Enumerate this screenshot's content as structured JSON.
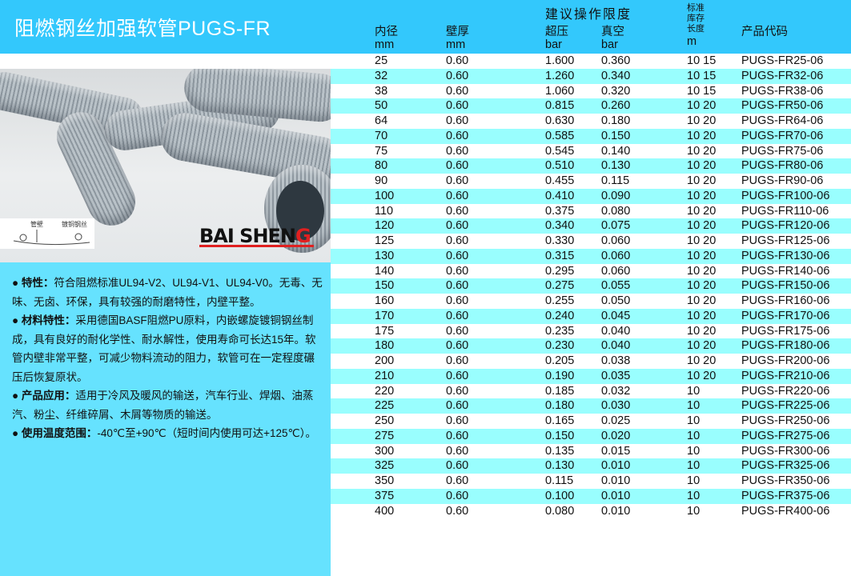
{
  "title": "阻燃钢丝加强软管PUGS-FR",
  "photo": {
    "diagram_labels": [
      "管壁",
      "镀铜钢丝"
    ],
    "logo_text": "BAI SHENG"
  },
  "colors": {
    "header": "#33c8fc",
    "panel": "#66e2fe",
    "row_alt": "#99fefe"
  },
  "description": [
    {
      "label": "特性：",
      "text": "符合阻燃标准UL94-V2、UL94-V1、UL94-V0。无毒、无味、无卤、环保，具有较强的耐磨特性，内壁平整。"
    },
    {
      "label": "材料特性：",
      "text": "采用德国BASF阻燃PU原料，内嵌螺旋镀铜钢丝制成，具有良好的耐化学性、耐水解性，使用寿命可长达15年。软管内壁非常平整，可减少物料流动的阻力，软管可在一定程度碾压后恢复原状。"
    },
    {
      "label": "产品应用：",
      "text": "适用于冷风及暖风的输送，汽车行业、焊烟、油蒸汽、粉尘、纤维碎屑、木屑等物质的输送。"
    },
    {
      "label": "使用温度范围：",
      "text": "-40℃至+90℃（短时间内使用可达+125℃）。"
    }
  ],
  "table": {
    "group_header": "建议操作限度",
    "headers": [
      {
        "name": "内径",
        "unit": "mm"
      },
      {
        "name": "壁厚",
        "unit": "mm"
      },
      {
        "name": "超压",
        "unit": "bar"
      },
      {
        "name": "真空",
        "unit": "bar"
      },
      {
        "name": "标准库存长度",
        "lines": [
          "标准",
          "库存",
          "长度"
        ],
        "unit": "m"
      },
      {
        "name": "产品代码",
        "unit": ""
      }
    ],
    "rows": [
      [
        "25",
        "0.60",
        "1.600",
        "0.360",
        "10 15",
        "PUGS-FR25-06"
      ],
      [
        "32",
        "0.60",
        "1.260",
        "0.340",
        "10 15",
        "PUGS-FR32-06"
      ],
      [
        "38",
        "0.60",
        "1.060",
        "0.320",
        "10 15",
        "PUGS-FR38-06"
      ],
      [
        "50",
        "0.60",
        "0.815",
        "0.260",
        "10 20",
        "PUGS-FR50-06"
      ],
      [
        "64",
        "0.60",
        "0.630",
        "0.180",
        "10 20",
        "PUGS-FR64-06"
      ],
      [
        "70",
        "0.60",
        "0.585",
        "0.150",
        "10 20",
        "PUGS-FR70-06"
      ],
      [
        "75",
        "0.60",
        "0.545",
        "0.140",
        "10 20",
        "PUGS-FR75-06"
      ],
      [
        "80",
        "0.60",
        "0.510",
        "0.130",
        "10 20",
        "PUGS-FR80-06"
      ],
      [
        "90",
        "0.60",
        "0.455",
        "0.115",
        "10 20",
        "PUGS-FR90-06"
      ],
      [
        "100",
        "0.60",
        "0.410",
        "0.090",
        "10 20",
        "PUGS-FR100-06"
      ],
      [
        "110",
        "0.60",
        "0.375",
        "0.080",
        "10 20",
        "PUGS-FR110-06"
      ],
      [
        "120",
        "0.60",
        "0.340",
        "0.075",
        "10 20",
        "PUGS-FR120-06"
      ],
      [
        "125",
        "0.60",
        "0.330",
        "0.060",
        "10 20",
        "PUGS-FR125-06"
      ],
      [
        "130",
        "0.60",
        "0.315",
        "0.060",
        "10 20",
        "PUGS-FR130-06"
      ],
      [
        "140",
        "0.60",
        "0.295",
        "0.060",
        "10 20",
        "PUGS-FR140-06"
      ],
      [
        "150",
        "0.60",
        "0.275",
        "0.055",
        "10 20",
        "PUGS-FR150-06"
      ],
      [
        "160",
        "0.60",
        "0.255",
        "0.050",
        "10 20",
        "PUGS-FR160-06"
      ],
      [
        "170",
        "0.60",
        "0.240",
        "0.045",
        "10 20",
        "PUGS-FR170-06"
      ],
      [
        "175",
        "0.60",
        "0.235",
        "0.040",
        "10 20",
        "PUGS-FR175-06"
      ],
      [
        "180",
        "0.60",
        "0.230",
        "0.040",
        "10 20",
        "PUGS-FR180-06"
      ],
      [
        "200",
        "0.60",
        "0.205",
        "0.038",
        "10 20",
        "PUGS-FR200-06"
      ],
      [
        "210",
        "0.60",
        "0.190",
        "0.035",
        "10 20",
        "PUGS-FR210-06"
      ],
      [
        "220",
        "0.60",
        "0.185",
        "0.032",
        "10",
        "PUGS-FR220-06"
      ],
      [
        "225",
        "0.60",
        "0.180",
        "0.030",
        "10",
        "PUGS-FR225-06"
      ],
      [
        "250",
        "0.60",
        "0.165",
        "0.025",
        "10",
        "PUGS-FR250-06"
      ],
      [
        "275",
        "0.60",
        "0.150",
        "0.020",
        "10",
        "PUGS-FR275-06"
      ],
      [
        "300",
        "0.60",
        "0.135",
        "0.015",
        "10",
        "PUGS-FR300-06"
      ],
      [
        "325",
        "0.60",
        "0.130",
        "0.010",
        "10",
        "PUGS-FR325-06"
      ],
      [
        "350",
        "0.60",
        "0.115",
        "0.010",
        "10",
        "PUGS-FR350-06"
      ],
      [
        "375",
        "0.60",
        "0.100",
        "0.010",
        "10",
        "PUGS-FR375-06"
      ],
      [
        "400",
        "0.60",
        "0.080",
        "0.010",
        "10",
        "PUGS-FR400-06"
      ]
    ]
  }
}
